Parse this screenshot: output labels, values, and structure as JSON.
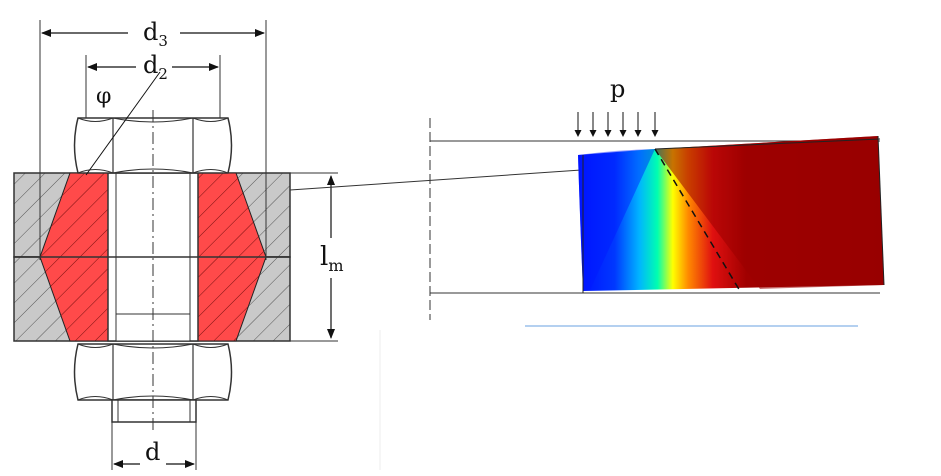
{
  "labels": {
    "d3": "d",
    "d3_sub": "3",
    "d2": "d",
    "d2_sub": "2",
    "phi": "φ",
    "lm": "l",
    "lm_sub": "m",
    "d": "d",
    "p": "p"
  },
  "colors": {
    "cone_red": "#ff4a4a",
    "plate_gray": "#c9c9c9",
    "fem_blue": "#0018ff",
    "fem_red": "#9a0000"
  }
}
